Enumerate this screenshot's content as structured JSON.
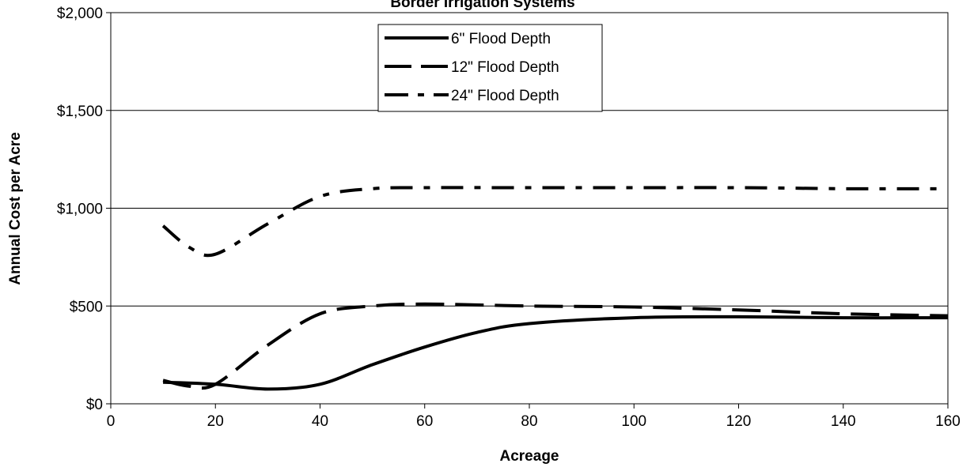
{
  "chart_data": {
    "type": "line",
    "title": "Border Irrigation Systems",
    "xlabel": "Acreage",
    "ylabel": "Annual Cost per Acre",
    "xlim": [
      0,
      160
    ],
    "ylim": [
      0,
      2000
    ],
    "x_ticks": [
      0,
      20,
      40,
      60,
      80,
      100,
      120,
      140,
      160
    ],
    "x_tick_labels": [
      "0",
      "20",
      "40",
      "60",
      "80",
      "100",
      "120",
      "140",
      "160"
    ],
    "y_ticks": [
      0,
      500,
      1000,
      1500,
      2000
    ],
    "y_tick_labels": [
      "$0",
      "$500",
      "$1,000",
      "$1,500",
      "$2,000"
    ],
    "grid": "horizontal",
    "legend_position": "top-center",
    "series": [
      {
        "name": "6\" Flood Depth",
        "style": "solid",
        "x": [
          10,
          20,
          30,
          40,
          50,
          60,
          70,
          80,
          100,
          120,
          140,
          160
        ],
        "values": [
          110,
          100,
          75,
          100,
          200,
          290,
          365,
          410,
          440,
          445,
          440,
          440
        ]
      },
      {
        "name": "12\" Flood Depth",
        "style": "long-dash",
        "x": [
          10,
          15,
          20,
          30,
          40,
          50,
          60,
          80,
          100,
          120,
          140,
          160
        ],
        "values": [
          120,
          90,
          100,
          300,
          460,
          500,
          510,
          500,
          495,
          480,
          460,
          450
        ]
      },
      {
        "name": "24\" Flood Depth",
        "style": "dash-dot",
        "x": [
          10,
          15,
          20,
          30,
          40,
          50,
          60,
          80,
          100,
          120,
          140,
          160
        ],
        "values": [
          910,
          800,
          765,
          920,
          1060,
          1100,
          1105,
          1105,
          1105,
          1105,
          1100,
          1100
        ]
      }
    ]
  }
}
